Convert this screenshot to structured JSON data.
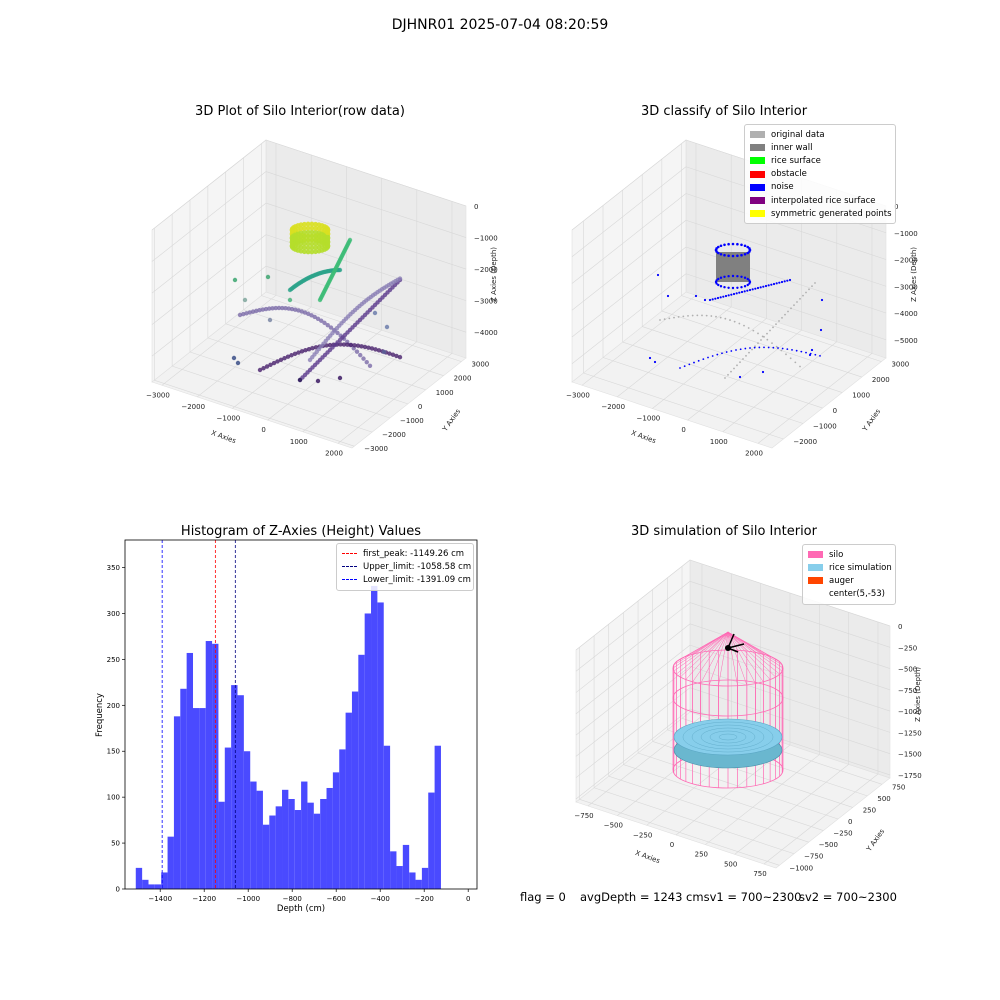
{
  "suptitle": "DJHNR01 2025-07-04 08:20:59",
  "panels": {
    "raw": {
      "title": "3D Plot of Silo Interior(row data)",
      "xlabel": "X Axies",
      "ylabel": "Y Axies",
      "zlabel": "Z Axies (Depth)",
      "xticks": [
        "−3000",
        "−2000",
        "−1000",
        "0",
        "1000",
        "2000"
      ],
      "yticks": [
        "3000",
        "2000",
        "1000",
        "0",
        "−1000",
        "−2000",
        "−3000"
      ],
      "zticks": [
        "0",
        "−1000",
        "−2000",
        "−3000",
        "−4000"
      ]
    },
    "classify": {
      "title": "3D classify of Silo Interior",
      "xlabel": "X Axies",
      "ylabel": "Y Axies",
      "zlabel": "Z Axies (Depth)",
      "xticks": [
        "−3000",
        "−2000",
        "−1000",
        "0",
        "1000",
        "2000"
      ],
      "yticks": [
        "3000",
        "2000",
        "1000",
        "0",
        "−1000",
        "−2000"
      ],
      "zticks": [
        "0",
        "−1000",
        "−2000",
        "−3000",
        "−4000",
        "−5000"
      ],
      "legend": [
        {
          "label": "original data",
          "color": "#b0b0b0"
        },
        {
          "label": "inner wall",
          "color": "#808080"
        },
        {
          "label": "rice surface",
          "color": "#00ff00"
        },
        {
          "label": "obstacle",
          "color": "#ff0000"
        },
        {
          "label": "noise",
          "color": "#0000ff"
        },
        {
          "label": "interpolated rice surface",
          "color": "#800080"
        },
        {
          "label": "symmetric generated points",
          "color": "#ffff00"
        }
      ]
    },
    "simulation": {
      "title": "3D simulation of Silo Interior",
      "xlabel": "X Axies",
      "ylabel": "Y Axies",
      "zlabel": "Z Axies (Depth)",
      "xticks": [
        "−750",
        "−500",
        "−250",
        "0",
        "250",
        "500",
        "750"
      ],
      "yticks": [
        "750",
        "500",
        "250",
        "0",
        "−250",
        "−500",
        "−750",
        "−1000"
      ],
      "zticks": [
        "0",
        "−250",
        "−500",
        "−750",
        "−1000",
        "−1250",
        "−1500",
        "−1750"
      ],
      "legend": [
        {
          "label": "silo",
          "color": "#ff69b4"
        },
        {
          "label": "rice simulation",
          "color": "#87ceeb"
        },
        {
          "label": "auger",
          "color": "#ff4500"
        },
        {
          "label": "center(5,-53)",
          "color": "#ffffff"
        }
      ]
    }
  },
  "chart_data": {
    "type": "bar",
    "title": "Histogram of Z-Axies (Height) Values",
    "xlabel": "Depth (cm)",
    "ylabel": "Frequency",
    "xlim": [
      -1560,
      40
    ],
    "ylim": [
      0,
      380
    ],
    "xticks": [
      -1400,
      -1200,
      -1000,
      -800,
      -600,
      -400,
      -200,
      0
    ],
    "yticks": [
      0,
      50,
      100,
      150,
      200,
      250,
      300,
      350
    ],
    "bar_color": "#4a4aff",
    "bins": {
      "start": -1511,
      "width": 28.9,
      "values": [
        23,
        10,
        5,
        5,
        18,
        57,
        188,
        218,
        257,
        197,
        197,
        270,
        267,
        95,
        154,
        222,
        211,
        150,
        117,
        107,
        70,
        80,
        90,
        108,
        98,
        86,
        117,
        94,
        82,
        98,
        110,
        127,
        152,
        192,
        215,
        255,
        300,
        330,
        312,
        156,
        41,
        25,
        48,
        18,
        10,
        23,
        105,
        156
      ]
    },
    "lines": [
      {
        "label": "first_peak: -1149.26 cm",
        "x": -1149.26,
        "color": "#ff0000"
      },
      {
        "label": "Upper_limit: -1058.58 cm",
        "x": -1058.58,
        "color": "#000080"
      },
      {
        "label": "Lower_limit: -1391.09 cm",
        "x": -1391.09,
        "color": "#0000ff"
      }
    ]
  },
  "footer": {
    "flag": "flag = 0",
    "avg": "avgDepth = 1243 cmsv1 = 700~2300",
    "sv2": "sv2 = 700~2300"
  }
}
